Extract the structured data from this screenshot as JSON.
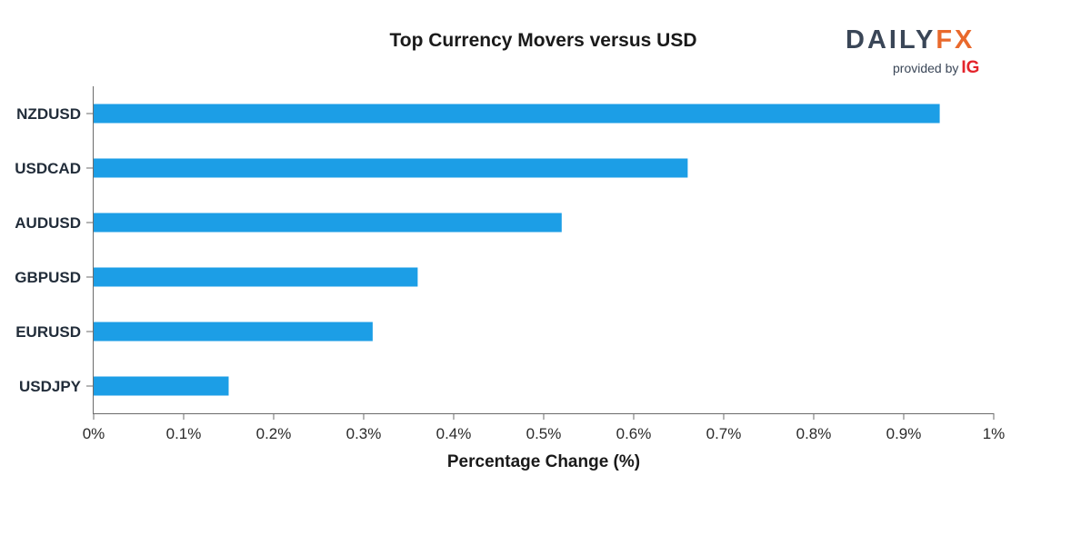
{
  "chart_data": {
    "type": "bar",
    "orientation": "horizontal",
    "title": "Top Currency Movers versus USD",
    "xlabel": "Percentage Change (%)",
    "ylabel": "",
    "categories": [
      "NZDUSD",
      "USDCAD",
      "AUDUSD",
      "GBPUSD",
      "EURUSD",
      "USDJPY"
    ],
    "values": [
      0.94,
      0.66,
      0.52,
      0.36,
      0.31,
      0.15
    ],
    "xlim": [
      0,
      1
    ],
    "x_ticks": [
      0,
      0.1,
      0.2,
      0.3,
      0.4,
      0.5,
      0.6,
      0.7,
      0.8,
      0.9,
      1
    ],
    "x_tick_labels": [
      "0%",
      "0.1%",
      "0.2%",
      "0.3%",
      "0.4%",
      "0.5%",
      "0.6%",
      "0.7%",
      "0.8%",
      "0.9%",
      "1%"
    ],
    "grid": false,
    "bar_color": "#1c9ee6"
  },
  "brand": {
    "daily": "DAILY",
    "fx": "FX",
    "provided_by": "provided by",
    "ig": "IG",
    "daily_color": "#3a4657",
    "fx_color": "#e9692c",
    "ig_color": "#e4242b"
  }
}
